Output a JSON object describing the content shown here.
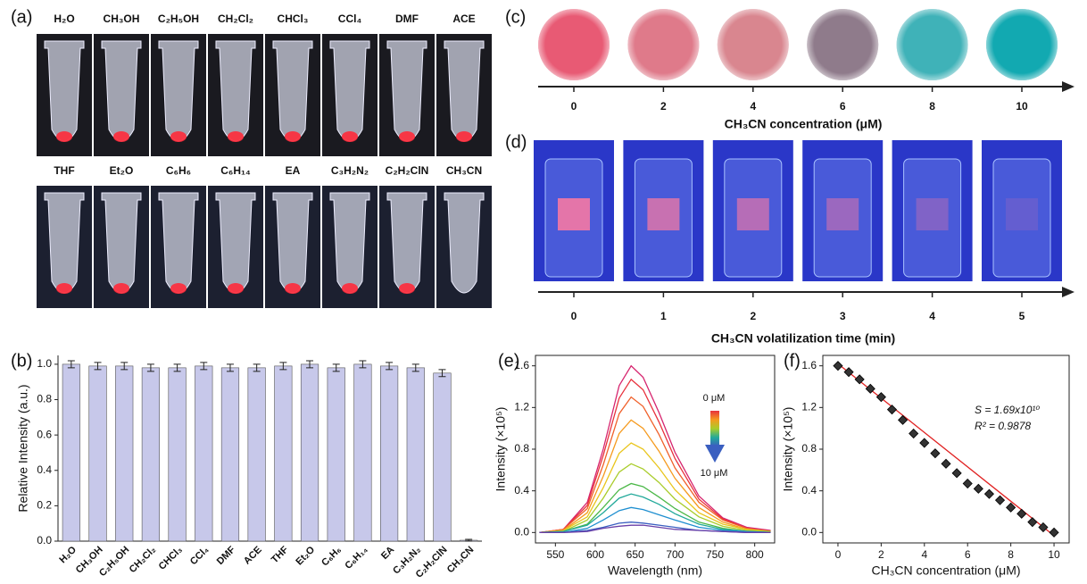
{
  "panel_a": {
    "label": "(a)",
    "solvents": [
      "H₂O",
      "CH₃OH",
      "C₂H₅OH",
      "CH₂Cl₂",
      "CHCl₃",
      "CCl₄",
      "DMF",
      "ACE",
      "THF",
      "Et₂O",
      "C₆H₆",
      "C₆H₁₄",
      "EA",
      "C₃H₂N₂",
      "C₂H₂ClN",
      "CH₃CN"
    ]
  },
  "panel_c": {
    "label": "(c)",
    "ticks": [
      0,
      2,
      4,
      6,
      8,
      10
    ],
    "axis_label": "CH₃CN concentration (μM)"
  },
  "panel_d": {
    "label": "(d)",
    "ticks": [
      0,
      1,
      2,
      3,
      4,
      5
    ],
    "axis_label": "CH₃CN volatilization time (min)"
  },
  "chart_data": [
    {
      "type": "bar",
      "panel_label": "(b)",
      "ylabel": "Relative Intensity (a.u.)",
      "categories": [
        "H₂O",
        "CH₃OH",
        "C₂H₅OH",
        "CH₂Cl₂",
        "CHCl₃",
        "CCl₄",
        "DMF",
        "ACE",
        "THF",
        "Et₂O",
        "C₆H₆",
        "C₆H₁₄",
        "EA",
        "C₃H₂N₂",
        "C₂H₂ClN",
        "CH₃CN"
      ],
      "values": [
        1.0,
        0.99,
        0.99,
        0.98,
        0.98,
        0.99,
        0.98,
        0.98,
        0.99,
        1.0,
        0.98,
        1.0,
        0.99,
        0.98,
        0.95,
        0.005
      ],
      "errors": [
        0.02,
        0.02,
        0.02,
        0.02,
        0.02,
        0.02,
        0.02,
        0.02,
        0.02,
        0.02,
        0.02,
        0.02,
        0.02,
        0.02,
        0.02,
        0.005
      ],
      "color": "#c7c8ea",
      "ylim": [
        0,
        1.05
      ],
      "yticks": [
        {
          "value": 0,
          "label": "0.0"
        },
        0.2,
        0.4,
        0.6,
        0.8,
        {
          "value": 1,
          "label": "1.0"
        }
      ]
    },
    {
      "type": "line",
      "panel_label": "(e)",
      "xlabel": "Wavelength (nm)",
      "ylabel": "Intensity (×10⁵)",
      "x": [
        530,
        560,
        590,
        610,
        630,
        645,
        660,
        680,
        700,
        730,
        760,
        790,
        820
      ],
      "series": [
        {
          "color": "#d6246e",
          "values": [
            0,
            0.03,
            0.29,
            0.8,
            1.41,
            1.6,
            1.49,
            1.15,
            0.77,
            0.35,
            0.14,
            0.05,
            0.02
          ]
        },
        {
          "color": "#e8313c",
          "values": [
            0,
            0.03,
            0.26,
            0.74,
            1.29,
            1.47,
            1.37,
            1.06,
            0.71,
            0.32,
            0.13,
            0.04,
            0.01
          ]
        },
        {
          "color": "#f0602a",
          "values": [
            0,
            0.03,
            0.23,
            0.65,
            1.14,
            1.3,
            1.21,
            0.94,
            0.62,
            0.29,
            0.12,
            0.04,
            0.01
          ]
        },
        {
          "color": "#f59a1e",
          "values": [
            0,
            0.02,
            0.19,
            0.54,
            0.95,
            1.08,
            1.0,
            0.78,
            0.52,
            0.24,
            0.1,
            0.03,
            0.01
          ]
        },
        {
          "color": "#e9c51c",
          "values": [
            0,
            0.02,
            0.15,
            0.43,
            0.76,
            0.86,
            0.8,
            0.62,
            0.41,
            0.19,
            0.08,
            0.03,
            0.01
          ]
        },
        {
          "color": "#a9cc2a",
          "values": [
            0,
            0.01,
            0.12,
            0.33,
            0.58,
            0.66,
            0.61,
            0.48,
            0.32,
            0.15,
            0.06,
            0.02,
            0.01
          ]
        },
        {
          "color": "#4cb848",
          "values": [
            0,
            0.01,
            0.08,
            0.24,
            0.41,
            0.47,
            0.44,
            0.34,
            0.23,
            0.1,
            0.04,
            0.01,
            0
          ]
        },
        {
          "color": "#22a99a",
          "values": [
            0,
            0.01,
            0.07,
            0.19,
            0.33,
            0.37,
            0.34,
            0.27,
            0.18,
            0.08,
            0.03,
            0.01,
            0
          ]
        },
        {
          "color": "#1f8fd0",
          "values": [
            0,
            0,
            0.04,
            0.12,
            0.21,
            0.24,
            0.22,
            0.17,
            0.12,
            0.05,
            0.02,
            0.01,
            0
          ]
        },
        {
          "color": "#3a5fc0",
          "values": [
            0,
            0,
            0.02,
            0.05,
            0.09,
            0.1,
            0.09,
            0.07,
            0.05,
            0.02,
            0.01,
            0,
            0
          ]
        },
        {
          "color": "#6a3fa8",
          "values": [
            0,
            0,
            0.01,
            0.04,
            0.06,
            0.07,
            0.07,
            0.05,
            0.03,
            0.02,
            0.01,
            0,
            0
          ]
        }
      ],
      "xlim": [
        525,
        825
      ],
      "ylim": [
        -0.1,
        1.7
      ],
      "xticks": [
        550,
        600,
        650,
        700,
        750,
        800
      ],
      "yticks": [
        {
          "value": 0,
          "label": "0.0"
        },
        0.4,
        0.8,
        1.2,
        1.6
      ],
      "annotations": [
        "0 μM",
        "10 μM"
      ]
    },
    {
      "type": "scatter",
      "panel_label": "(f)",
      "xlabel": "CH₃CN concentration (μM)",
      "ylabel": "Intensity (×10⁵)",
      "x": [
        0,
        0.5,
        1,
        1.5,
        2,
        2.5,
        3,
        3.5,
        4,
        4.5,
        5,
        5.5,
        6,
        6.5,
        7,
        7.5,
        8,
        8.5,
        9,
        9.5,
        10
      ],
      "values": [
        1.6,
        1.54,
        1.47,
        1.38,
        1.3,
        1.18,
        1.08,
        0.95,
        0.86,
        0.76,
        0.66,
        0.57,
        0.47,
        0.42,
        0.37,
        0.31,
        0.24,
        0.18,
        0.1,
        0.05,
        0.0
      ],
      "color": "#333333",
      "fit": {
        "x": [
          0,
          10
        ],
        "values": [
          1.62,
          -0.03
        ],
        "color": "#e02020"
      },
      "xlim": [
        -0.7,
        10.7
      ],
      "ylim": [
        -0.1,
        1.7
      ],
      "xticks": [
        0,
        2,
        4,
        6,
        8,
        10
      ],
      "yticks": [
        {
          "value": 0,
          "label": "0.0"
        },
        0.4,
        0.8,
        1.2,
        1.6
      ],
      "annotations": [
        "S = 1.69x10¹⁰",
        "R² = 0.9878"
      ]
    }
  ]
}
